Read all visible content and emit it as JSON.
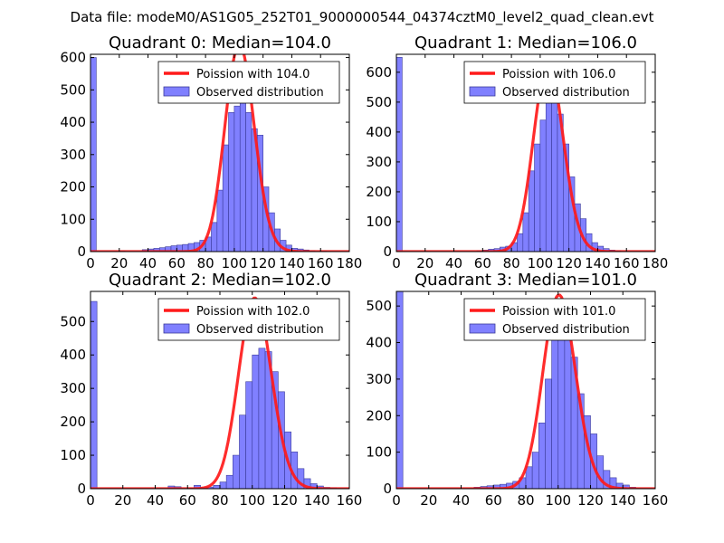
{
  "figure": {
    "suptitle": "Data file: modeM0/AS1G05_252T01_9000000544_04374cztM0_level2_quad_clean.evt"
  },
  "colors": {
    "bar_fill": "#8080ff",
    "bar_edge": "#3a3a9a",
    "curve": "#ff1a1a",
    "axes": "#000000"
  },
  "chart_data": [
    {
      "type": "bar",
      "title": "Quadrant 0: Median=104.0",
      "xlim": [
        0,
        180
      ],
      "ylim": [
        0,
        610
      ],
      "xticks": [
        0,
        20,
        40,
        60,
        80,
        100,
        120,
        140,
        160,
        180
      ],
      "yticks": [
        0,
        100,
        200,
        300,
        400,
        500,
        600
      ],
      "bin_width": 4,
      "curve_lambda": 104,
      "curve_peak": 640,
      "legend": [
        "Poission with 104.0",
        "Observed distribution"
      ],
      "legend_loc": "upper-right",
      "bins": [
        [
          0,
          600
        ],
        [
          20,
          2
        ],
        [
          36,
          6
        ],
        [
          40,
          8
        ],
        [
          44,
          10
        ],
        [
          48,
          12
        ],
        [
          52,
          15
        ],
        [
          56,
          18
        ],
        [
          60,
          20
        ],
        [
          64,
          22
        ],
        [
          68,
          25
        ],
        [
          72,
          28
        ],
        [
          76,
          35
        ],
        [
          80,
          45
        ],
        [
          84,
          90
        ],
        [
          88,
          190
        ],
        [
          92,
          330
        ],
        [
          96,
          430
        ],
        [
          100,
          450
        ],
        [
          104,
          460
        ],
        [
          108,
          430
        ],
        [
          112,
          380
        ],
        [
          116,
          360
        ],
        [
          120,
          200
        ],
        [
          124,
          120
        ],
        [
          128,
          70
        ],
        [
          132,
          35
        ],
        [
          136,
          20
        ],
        [
          140,
          10
        ],
        [
          144,
          8
        ],
        [
          148,
          5
        ],
        [
          152,
          3
        ],
        [
          160,
          2
        ]
      ]
    },
    {
      "type": "bar",
      "title": "Quadrant 1: Median=106.0",
      "xlim": [
        0,
        180
      ],
      "ylim": [
        0,
        660
      ],
      "xticks": [
        0,
        20,
        40,
        60,
        80,
        100,
        120,
        140,
        160,
        180
      ],
      "yticks": [
        0,
        100,
        200,
        300,
        400,
        500,
        600
      ],
      "bin_width": 4,
      "curve_lambda": 106,
      "curve_peak": 630,
      "legend": [
        "Poission with 106.0",
        "Observed distribution"
      ],
      "legend_loc": "upper-right",
      "bins": [
        [
          0,
          650
        ],
        [
          56,
          3
        ],
        [
          60,
          5
        ],
        [
          64,
          8
        ],
        [
          68,
          10
        ],
        [
          72,
          15
        ],
        [
          76,
          18
        ],
        [
          80,
          30
        ],
        [
          84,
          60
        ],
        [
          88,
          130
        ],
        [
          92,
          270
        ],
        [
          96,
          360
        ],
        [
          100,
          440
        ],
        [
          104,
          560
        ],
        [
          108,
          540
        ],
        [
          112,
          460
        ],
        [
          116,
          360
        ],
        [
          120,
          250
        ],
        [
          124,
          160
        ],
        [
          128,
          110
        ],
        [
          132,
          60
        ],
        [
          136,
          30
        ],
        [
          140,
          18
        ],
        [
          144,
          10
        ],
        [
          148,
          5
        ],
        [
          152,
          3
        ]
      ]
    },
    {
      "type": "bar",
      "title": "Quadrant 2: Median=102.0",
      "xlim": [
        0,
        160
      ],
      "ylim": [
        0,
        590
      ],
      "xticks": [
        0,
        20,
        40,
        60,
        80,
        100,
        120,
        140,
        160
      ],
      "yticks": [
        0,
        100,
        200,
        300,
        400,
        500
      ],
      "bin_width": 4,
      "curve_lambda": 102,
      "curve_peak": 570,
      "legend": [
        "Poission with 102.0",
        "Observed distribution"
      ],
      "legend_loc": "upper-right",
      "bins": [
        [
          0,
          560
        ],
        [
          48,
          8
        ],
        [
          52,
          6
        ],
        [
          60,
          2
        ],
        [
          64,
          10
        ],
        [
          68,
          4
        ],
        [
          72,
          5
        ],
        [
          76,
          10
        ],
        [
          80,
          20
        ],
        [
          84,
          40
        ],
        [
          88,
          100
        ],
        [
          92,
          220
        ],
        [
          96,
          320
        ],
        [
          100,
          400
        ],
        [
          104,
          420
        ],
        [
          108,
          410
        ],
        [
          112,
          350
        ],
        [
          116,
          290
        ],
        [
          120,
          170
        ],
        [
          124,
          110
        ],
        [
          128,
          60
        ],
        [
          132,
          30
        ],
        [
          136,
          15
        ],
        [
          140,
          8
        ],
        [
          144,
          4
        ],
        [
          148,
          3
        ]
      ]
    },
    {
      "type": "bar",
      "title": "Quadrant 3: Median=101.0",
      "xlim": [
        0,
        160
      ],
      "ylim": [
        0,
        540
      ],
      "xticks": [
        0,
        20,
        40,
        60,
        80,
        100,
        120,
        140,
        160
      ],
      "yticks": [
        0,
        100,
        200,
        300,
        400,
        500
      ],
      "bin_width": 4,
      "curve_lambda": 101,
      "curve_peak": 530,
      "legend": [
        "Poission with 101.0",
        "Observed distribution"
      ],
      "legend_loc": "upper-right",
      "bins": [
        [
          0,
          540
        ],
        [
          48,
          4
        ],
        [
          52,
          6
        ],
        [
          56,
          8
        ],
        [
          60,
          10
        ],
        [
          64,
          12
        ],
        [
          68,
          15
        ],
        [
          72,
          20
        ],
        [
          76,
          30
        ],
        [
          80,
          60
        ],
        [
          84,
          100
        ],
        [
          88,
          180
        ],
        [
          92,
          300
        ],
        [
          96,
          410
        ],
        [
          100,
          440
        ],
        [
          104,
          430
        ],
        [
          108,
          360
        ],
        [
          112,
          260
        ],
        [
          116,
          200
        ],
        [
          120,
          150
        ],
        [
          124,
          90
        ],
        [
          128,
          50
        ],
        [
          132,
          30
        ],
        [
          136,
          15
        ],
        [
          140,
          10
        ],
        [
          144,
          4
        ]
      ]
    }
  ]
}
